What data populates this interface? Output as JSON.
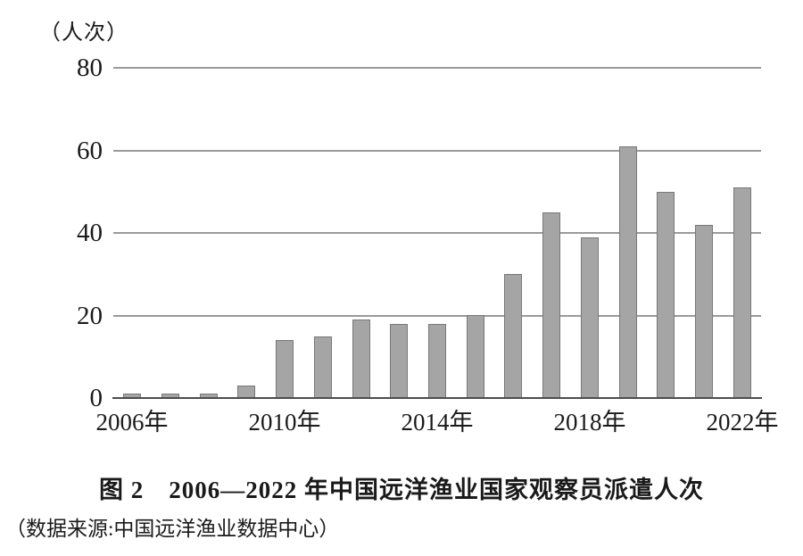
{
  "figure": {
    "unit_label": "（人次）",
    "title": "图 2　2006—2022 年中国远洋渔业国家观察员派遣人次",
    "source": "（数据来源:中国远洋渔业数据中心）"
  },
  "chart_data": {
    "type": "bar",
    "title": "图 2　2006—2022 年中国远洋渔业国家观察员派遣人次",
    "ylabel": "（人次）",
    "xlabel": "",
    "categories": [
      "2006",
      "2007",
      "2008",
      "2009",
      "2010",
      "2011",
      "2012",
      "2013",
      "2014",
      "2015",
      "2016",
      "2017",
      "2018",
      "2019",
      "2020",
      "2021",
      "2022"
    ],
    "values": [
      1,
      1,
      1,
      3,
      14,
      15,
      19,
      18,
      18,
      20,
      30,
      45,
      39,
      61,
      50,
      42,
      51
    ],
    "x_tick_labels": [
      {
        "index": 0,
        "label": "2006年"
      },
      {
        "index": 4,
        "label": "2010年"
      },
      {
        "index": 8,
        "label": "2014年"
      },
      {
        "index": 12,
        "label": "2018年"
      },
      {
        "index": 16,
        "label": "2022年"
      }
    ],
    "y_ticks": [
      0,
      20,
      40,
      60,
      80
    ],
    "ylim": [
      0,
      80
    ],
    "grid": true,
    "legend": false,
    "colors": {
      "bar_fill": "#a5a5a5",
      "bar_border": "#787878",
      "gridline": "#9a9a9a",
      "axis": "#4d4d4d",
      "text": "#1a1a1a"
    }
  }
}
